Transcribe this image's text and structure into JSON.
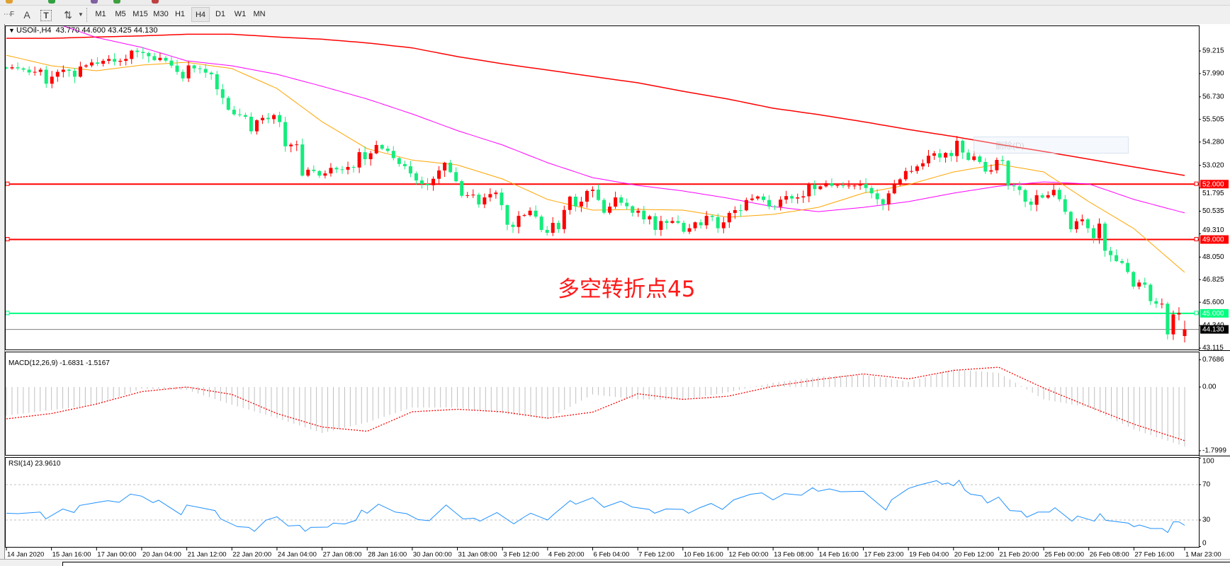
{
  "toolbar": {
    "icons": [
      "period-separator-icon",
      "text-icon",
      "text-label-icon",
      "arrows-icon"
    ],
    "text_icon_glyph": "A",
    "label_icon_glyph": "T",
    "timeframes": [
      "M1",
      "M5",
      "M15",
      "M30",
      "H1",
      "H4",
      "D1",
      "W1",
      "MN"
    ],
    "active_timeframe": "H4"
  },
  "header": {
    "symbol": "USOil-,H4",
    "open": "43.770",
    "high": "44.600",
    "low": "43.425",
    "close": "44.130"
  },
  "annotation": "多空转折点45",
  "ghost_menu": "删除(D)",
  "colors": {
    "bull_candle": "#ff0000",
    "bear_candle": "#14ec7c",
    "ma_slow": "#ff0000",
    "ma_mid": "#ff00ff",
    "ma_fast": "#ffa500",
    "macd_hist": "#c0c0c0",
    "macd_signal": "#ff0000",
    "rsi_line": "#1e90ff"
  },
  "chart_data": [
    {
      "type": "candlestick",
      "title": "USOil-,H4",
      "price_ticks": [
        "59.215",
        "57.990",
        "56.730",
        "55.505",
        "54.280",
        "53.020",
        "51.795",
        "50.535",
        "49.310",
        "48.050",
        "46.825",
        "45.600",
        "44.340",
        "43.115"
      ],
      "ylim": [
        43.115,
        59.215
      ],
      "time_labels": [
        "14 Jan 2020",
        "15 Jan 16:00",
        "17 Jan 00:00",
        "20 Jan 04:00",
        "21 Jan 12:00",
        "22 Jan 20:00",
        "24 Jan 04:00",
        "27 Jan 08:00",
        "28 Jan 16:00",
        "30 Jan 00:00",
        "31 Jan 08:00",
        "3 Feb 12:00",
        "4 Feb 20:00",
        "6 Feb 04:00",
        "7 Feb 12:00",
        "10 Feb 16:00",
        "12 Feb 00:00",
        "13 Feb 08:00",
        "14 Feb 16:00",
        "17 Feb 23:00",
        "19 Feb 04:00",
        "20 Feb 12:00",
        "21 Feb 20:00",
        "25 Feb 00:00",
        "26 Feb 08:00",
        "27 Feb 16:00",
        "1 Mar 23:00"
      ],
      "closes": [
        58.27,
        58.33,
        58.27,
        58.2,
        58.05,
        58.08,
        58.2,
        57.44,
        57.82,
        58.08,
        58.2,
        58.14,
        57.82,
        58.37,
        58.43,
        58.59,
        58.52,
        58.68,
        58.78,
        58.63,
        58.68,
        58.78,
        59.23,
        59.16,
        59.1,
        58.93,
        58.72,
        58.84,
        58.69,
        58.42,
        58.08,
        57.73,
        58.43,
        58.27,
        58.24,
        58.04,
        57.95,
        57.14,
        56.67,
        56.03,
        55.78,
        55.74,
        55.65,
        54.86,
        55.46,
        55.59,
        55.52,
        55.74,
        55.36,
        54.05,
        54.14,
        54.15,
        52.46,
        52.78,
        52.71,
        52.46,
        52.58,
        52.88,
        52.8,
        52.78,
        52.93,
        52.9,
        53.73,
        53.35,
        53.67,
        54.12,
        53.92,
        53.8,
        53.41,
        53.09,
        52.97,
        52.58,
        52.2,
        52.01,
        51.94,
        52.29,
        52.74,
        53.16,
        52.65,
        52.16,
        51.37,
        51.4,
        51.43,
        50.9,
        51.28,
        51.46,
        51.54,
        50.86,
        49.8,
        49.68,
        50.28,
        50.32,
        50.56,
        50.24,
        49.52,
        49.36,
        49.9,
        49.56,
        50.6,
        51.32,
        50.79,
        51.05,
        51.63,
        51.7,
        51.14,
        50.45,
        50.78,
        51.28,
        50.99,
        50.8,
        50.45,
        50.56,
        50.09,
        50.26,
        49.52,
        50.0,
        49.9,
        50.0,
        49.9,
        49.42,
        49.61,
        49.93,
        49.77,
        50.28,
        50.22,
        49.61,
        49.93,
        50.44,
        50.59,
        50.58,
        51.14,
        51.22,
        51.33,
        51.14,
        50.79,
        50.77,
        51.16,
        51.35,
        51.22,
        51.28,
        51.34,
        51.97,
        51.73,
        51.88,
        52.05,
        51.91,
        51.94,
        51.92,
        51.92,
        51.92,
        52.01,
        51.79,
        51.5,
        51.18,
        50.91,
        51.5,
        51.97,
        52.26,
        52.71,
        52.71,
        52.96,
        53.13,
        53.54,
        53.67,
        53.44,
        53.69,
        53.52,
        54.35,
        53.71,
        53.31,
        53.5,
        53.2,
        52.68,
        52.75,
        53.31,
        53.26,
        51.92,
        51.88,
        51.68,
        51.05,
        50.88,
        51.4,
        51.27,
        51.4,
        51.69,
        51.18,
        50.5,
        49.56,
        49.99,
        50.09,
        49.61,
        49.07,
        49.86,
        48.39,
        48.15,
        47.83,
        47.73,
        47.24,
        46.45,
        46.67,
        46.55,
        45.66,
        45.52,
        45.52,
        43.86,
        44.94,
        45.02
      ],
      "last_bar": {
        "open": 43.77,
        "high": 44.6,
        "low": 43.425,
        "close": 44.13
      },
      "moving_averages": [
        {
          "color": "#ff0000",
          "values_at_time_labels": [
            59.9,
            59.9,
            59.97,
            60.03,
            60.12,
            60.12,
            59.97,
            59.85,
            59.65,
            59.38,
            58.91,
            58.52,
            58.18,
            57.83,
            57.49,
            57.03,
            56.61,
            56.11,
            55.77,
            55.38,
            54.96,
            54.58,
            54.16,
            53.77,
            53.35,
            52.93,
            52.47
          ]
        },
        {
          "color": "#ff00ff",
          "values_at_time_labels": [
            61.5,
            60.8,
            59.94,
            59.41,
            58.68,
            58.41,
            57.95,
            57.3,
            56.61,
            55.8,
            54.9,
            54.12,
            53.16,
            52.35,
            51.93,
            51.63,
            51.24,
            50.78,
            50.51,
            50.74,
            51.05,
            51.51,
            51.89,
            52.12,
            52.01,
            51.17,
            50.44
          ]
        },
        {
          "color": "#ffa500",
          "values_at_time_labels": [
            58.98,
            58.41,
            58.14,
            58.45,
            58.6,
            58.26,
            57.18,
            55.38,
            53.92,
            53.3,
            53.04,
            52.28,
            51.17,
            50.59,
            50.63,
            50.59,
            50.21,
            50.36,
            50.74,
            51.51,
            51.97,
            52.66,
            53.08,
            52.66,
            51.05,
            49.59,
            47.22
          ]
        }
      ],
      "horizontal_lines": [
        {
          "label": "52.000",
          "value": 52.0,
          "color": "#ff0000"
        },
        {
          "label": "49.000",
          "value": 49.0,
          "color": "#ff0000"
        },
        {
          "label": "45.000",
          "value": 45.0,
          "color": "#00ff7f"
        }
      ],
      "bid_line": {
        "label": "44.130",
        "value": 44.13,
        "color": "#808080"
      }
    },
    {
      "type": "bar",
      "title": "MACD(12,26,9)",
      "main_value": "-1.6831",
      "signal_value": "-1.5167",
      "axis_labels": [
        "0.7686",
        "0.00",
        "-1.7999"
      ],
      "ylim": [
        -1.7999,
        0.7686
      ],
      "histogram_at_time_labels": [
        -0.81,
        -0.65,
        -0.51,
        -0.05,
        -0.08,
        -0.5,
        -0.88,
        -1.3,
        -1.0,
        -0.58,
        -0.58,
        -0.75,
        -0.91,
        -0.21,
        -0.35,
        -0.36,
        -0.15,
        0.12,
        0.29,
        0.35,
        0.15,
        0.5,
        0.4,
        -0.35,
        -0.58,
        -1.2,
        -1.6831
      ],
      "signal_at_time_labels": [
        -0.9,
        -0.75,
        -0.48,
        -0.13,
        0.0,
        -0.21,
        -0.75,
        -1.13,
        -1.25,
        -0.7,
        -0.63,
        -0.7,
        -0.88,
        -0.71,
        -0.19,
        -0.35,
        -0.26,
        0.02,
        0.21,
        0.37,
        0.23,
        0.47,
        0.56,
        -0.03,
        -0.55,
        -1.05,
        -1.5167
      ]
    },
    {
      "type": "line",
      "title": "RSI(14)",
      "current_value": "23.9610",
      "axis_labels": [
        "100",
        "70",
        "30",
        "0"
      ],
      "levels": [
        70,
        30
      ],
      "ylim": [
        0,
        100
      ],
      "points_bar_value": [
        [
          0,
          37.7
        ],
        [
          2,
          37.2
        ],
        [
          6,
          39
        ],
        [
          7,
          31.3
        ],
        [
          10,
          42.5
        ],
        [
          12,
          38.5
        ],
        [
          13,
          46.5
        ],
        [
          18,
          51.9
        ],
        [
          20,
          50
        ],
        [
          22,
          59.3
        ],
        [
          24,
          57
        ],
        [
          26,
          49.7
        ],
        [
          27,
          52.4
        ],
        [
          31,
          35.9
        ],
        [
          32,
          47
        ],
        [
          37,
          40.7
        ],
        [
          38,
          31.3
        ],
        [
          41,
          22.5
        ],
        [
          43,
          21.7
        ],
        [
          44,
          17.2
        ],
        [
          46,
          29.7
        ],
        [
          48,
          33.7
        ],
        [
          50,
          23.3
        ],
        [
          52,
          24
        ],
        [
          53,
          17.2
        ],
        [
          54,
          21.7
        ],
        [
          57,
          22
        ],
        [
          58,
          26.5
        ],
        [
          60,
          25.5
        ],
        [
          62,
          29.7
        ],
        [
          63,
          41.2
        ],
        [
          64,
          37.7
        ],
        [
          66,
          47.9
        ],
        [
          69,
          39
        ],
        [
          71,
          37.2
        ],
        [
          73,
          30.5
        ],
        [
          75,
          29.2
        ],
        [
          78,
          47
        ],
        [
          81,
          31.3
        ],
        [
          83,
          32
        ],
        [
          84,
          28.7
        ],
        [
          87,
          38.5
        ],
        [
          90,
          25.7
        ],
        [
          92,
          34
        ],
        [
          93,
          37.7
        ],
        [
          96,
          30
        ],
        [
          97,
          35.9
        ],
        [
          100,
          51.9
        ],
        [
          101,
          47.9
        ],
        [
          104,
          55.3
        ],
        [
          106,
          44.4
        ],
        [
          109,
          51.3
        ],
        [
          111,
          44.7
        ],
        [
          114,
          42
        ],
        [
          115,
          37.7
        ],
        [
          117,
          42.5
        ],
        [
          120,
          42
        ],
        [
          121,
          37.7
        ],
        [
          123,
          43.9
        ],
        [
          125,
          48.7
        ],
        [
          127,
          42
        ],
        [
          129,
          52.7
        ],
        [
          132,
          59.1
        ],
        [
          134,
          60.7
        ],
        [
          136,
          52.7
        ],
        [
          138,
          59.9
        ],
        [
          141,
          58
        ],
        [
          143,
          66.5
        ],
        [
          144,
          62.5
        ],
        [
          146,
          65.2
        ],
        [
          148,
          62
        ],
        [
          152,
          62.5
        ],
        [
          156,
          41.2
        ],
        [
          157,
          52.7
        ],
        [
          160,
          65.7
        ],
        [
          162,
          69.7
        ],
        [
          165,
          74.5
        ],
        [
          166,
          70.5
        ],
        [
          167,
          71.9
        ],
        [
          168,
          68.7
        ],
        [
          169,
          75
        ],
        [
          170,
          63.9
        ],
        [
          171,
          59.3
        ],
        [
          173,
          57.2
        ],
        [
          174,
          49.2
        ],
        [
          176,
          55.9
        ],
        [
          178,
          40.7
        ],
        [
          180,
          39.9
        ],
        [
          181,
          33.2
        ],
        [
          183,
          39
        ],
        [
          185,
          39
        ],
        [
          186,
          43.9
        ],
        [
          189,
          28.7
        ],
        [
          190,
          34.5
        ],
        [
          193,
          28.7
        ],
        [
          194,
          37.2
        ],
        [
          195,
          29.7
        ],
        [
          199,
          26.5
        ],
        [
          200,
          22.5
        ],
        [
          201,
          24.4
        ],
        [
          203,
          20.4
        ],
        [
          205,
          20.4
        ],
        [
          206,
          15.9
        ],
        [
          207,
          27.9
        ],
        [
          208,
          27.9
        ],
        [
          209,
          23.961
        ]
      ]
    }
  ]
}
